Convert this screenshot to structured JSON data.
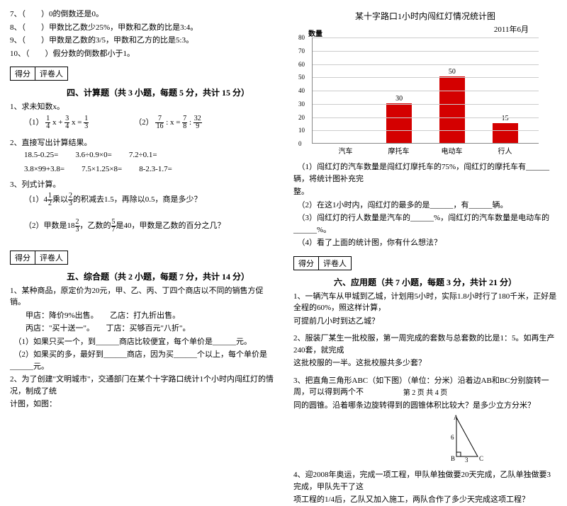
{
  "left": {
    "top_items": [
      "7、（　　）0的倒数还是0。",
      "8、（　　）甲数比乙数少25%，甲数和乙数的比是3:4。",
      "9、（　　）甲数是乙数的3/5，甲数和乙方的比是5:3。",
      "10、（　　）假分数的倒数都小于1。"
    ],
    "score": {
      "l1": "得分",
      "l2": "评卷人"
    },
    "sec4_title": "四、计算题（共 3 小题，每题 5 分，共计 15 分）",
    "q1": "1、求未知数x。",
    "eq1a_pre": "（1）",
    "eq1a_f1n": "1",
    "eq1a_f1d": "4",
    "eq1a_mid1": " x + ",
    "eq1a_f2n": "3",
    "eq1a_f2d": "4",
    "eq1a_mid2": " x = ",
    "eq1a_f3n": "1",
    "eq1a_f3d": "3",
    "eq1b_pre": "（2）",
    "eq1b_f1n": "7",
    "eq1b_f1d": "16",
    "eq1b_mid1": " : x = ",
    "eq1b_f2n": "7",
    "eq1b_f2d": "8",
    "eq1b_mid2": " : ",
    "eq1b_f3n": "32",
    "eq1b_f3d": "9",
    "q2": "2、直接写出计算结果。",
    "row1": [
      "18.5-0.25=",
      "3.6÷0.9×0=",
      "7.2÷0.1="
    ],
    "row2": [
      "3.8×99+3.8=",
      "7.5×1.25×8=",
      "8-2.3-1.7="
    ],
    "q3": "3、列式计算。",
    "q3a_pre": "（1）4",
    "q3a_f1n": "1",
    "q3a_f1d": "2",
    "q3a_mid1": "乘以",
    "q3a_f2n": "2",
    "q3a_f2d": "3",
    "q3a_rest": "的积减去1.5，再除以0.5，商是多少？",
    "q3b_pre": "（2）甲数是18",
    "q3b_f1n": "2",
    "q3b_f1d": "3",
    "q3b_mid1": "，乙数的",
    "q3b_f2n": "5",
    "q3b_f2d": "7",
    "q3b_rest": "是40，甲数是乙数的百分之几？",
    "sec5_title": "五、综合题（共 2 小题，每题 7 分，共计 14 分）",
    "s5q1": [
      "1、某种商品，原定价为20元，甲、乙、丙、丁四个商店以不同的销售方促销。",
      "　　甲店：降价9%出售。　　乙店：打九折出售。",
      "　　丙店：\"买十送一\"。　　丁店：买够百元\"八折\"。",
      "　（1）如果只买一个，到______商店比较便宜，每个单价是______元。",
      "　（2）如果买的多，最好到______商店，因为买______个以上，每个单价是______元。"
    ],
    "s5q2": [
      "2、为了创建\"文明城市\"，交通部门在某个十字路口统计1个小时内闯红灯的情况，制成了统",
      "计图，如图："
    ]
  },
  "right": {
    "chart": {
      "title": "某十字路口1小时内闯红灯情况统计图",
      "date": "2011年6月",
      "ytitle": "数量",
      "ylabels": [
        "0",
        "10",
        "20",
        "30",
        "40",
        "50",
        "60",
        "70",
        "80"
      ],
      "categories": [
        "汽车",
        "摩托车",
        "电动车",
        "行人"
      ],
      "values": [
        null,
        30,
        50,
        15
      ],
      "bar_color": "#d40000",
      "grid_color": "#cccccc",
      "ylim": 80
    },
    "chart_q": [
      "　（1）闯红灯的汽车数量是闯红灯摩托车的75%，闯红灯的摩托车有______辆，将统计图补充完",
      "整。",
      "　（2）在这1小时内，闯红灯的最多的是______，有______辆。",
      "　（3）闯红灯的行人数量是汽车的______%，闯红灯的汽车数量是电动车的______%。",
      "　（4）看了上面的统计图，你有什么想法？"
    ],
    "score": {
      "l1": "得分",
      "l2": "评卷人"
    },
    "sec6_title": "六、应用题（共 7 小题，每题 3 分，共计 21 分）",
    "q1": [
      "1、一辆汽车从甲城到乙城，计划用5小时，实际1.8小时行了180千米，正好是全程的60%，照这样计算，",
      "可提前几小时到达乙城？"
    ],
    "q2": [
      "2、服装厂某生一批校服，第一周完成的套数与总套数的比是1：5。如再生产240套，就完成",
      "这批校服的一半。这批校服共多少套？"
    ],
    "q3": [
      "3、把直角三角形ABC（如下图）（单位：分米）沿着边AB和BC分别旋转一周，可以得到两个不",
      "同的圆锥。沿着哪条边旋转得到的圆锥体积比较大？是多少立方分米？"
    ],
    "tri": {
      "A": "A",
      "B": "B",
      "C": "C",
      "h": "6",
      "w": "3"
    },
    "q4": [
      "4、迎2008年奥运，完成一项工程，甲队单独做要20天完成，乙队单独做要3完成，甲队先干了这",
      "项工程的1/4后，乙队又加入施工，两队合作了多少天完成这项工程？"
    ]
  },
  "footer": "第 2 页 共 4 页"
}
